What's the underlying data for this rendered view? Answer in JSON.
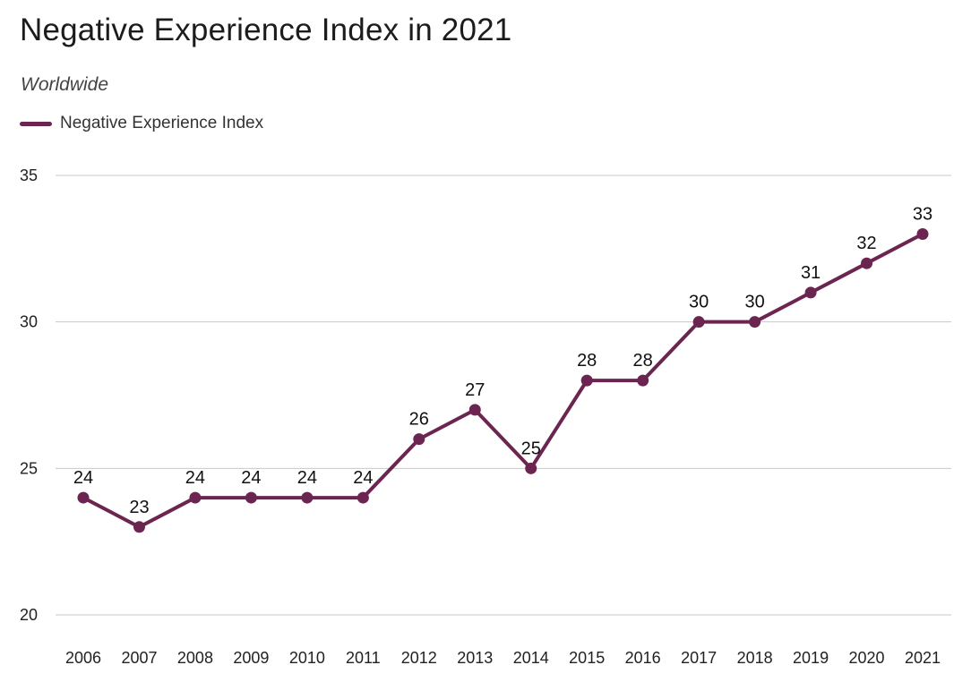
{
  "title": "Negative Experience Index in 2021",
  "subtitle": "Worldwide",
  "colors": {
    "series": "#6b2550",
    "grid": "#c8c8c8"
  },
  "chart_data": {
    "type": "line",
    "title": "Negative Experience Index in 2021",
    "subtitle": "Worldwide",
    "xlabel": "",
    "ylabel": "",
    "x": [
      "2006",
      "2007",
      "2008",
      "2009",
      "2010",
      "2011",
      "2012",
      "2013",
      "2014",
      "2015",
      "2016",
      "2017",
      "2018",
      "2019",
      "2020",
      "2021"
    ],
    "series": [
      {
        "name": "Negative Experience Index",
        "values": [
          24,
          23,
          24,
          24,
          24,
          24,
          26,
          27,
          25,
          28,
          28,
          30,
          30,
          31,
          32,
          33
        ]
      }
    ],
    "ylim": [
      20,
      35
    ],
    "yticks": [
      20,
      25,
      30,
      35
    ],
    "grid": "horizontal",
    "legend": "top-left",
    "data_labels": true
  }
}
